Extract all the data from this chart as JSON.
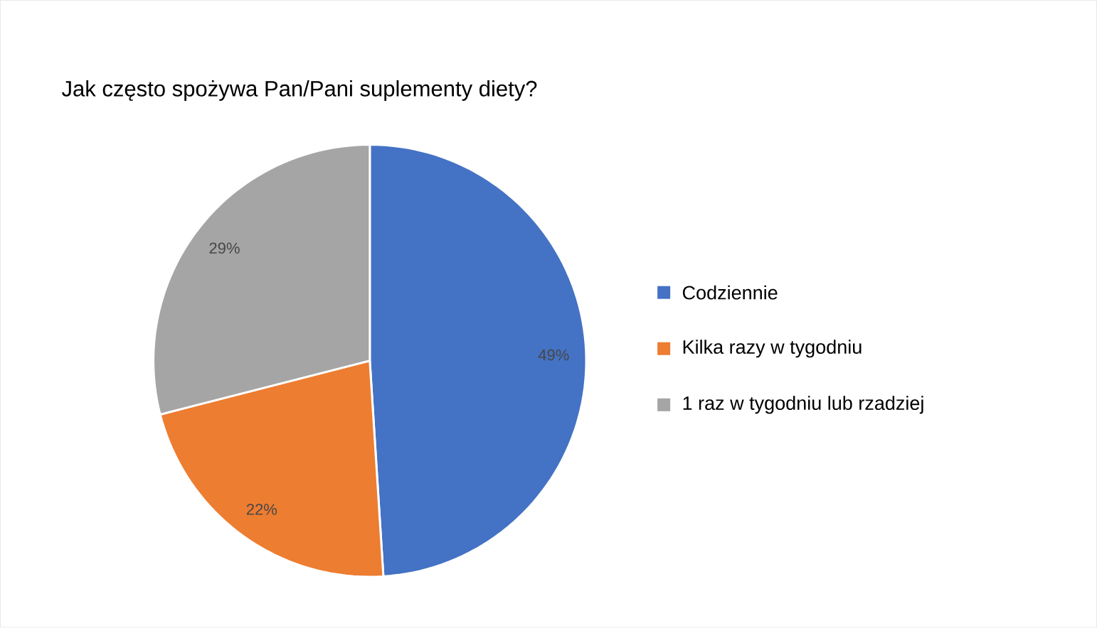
{
  "chart_data": {
    "type": "pie",
    "title": "Jak często spożywa Pan/Pani suplementy diety?",
    "categories": [
      "Codziennie",
      "Kilka razy w tygodniu",
      "1 raz w tygodniu lub rzadziej"
    ],
    "values": [
      49,
      22,
      29
    ],
    "value_labels": [
      "49%",
      "22%",
      "29%"
    ],
    "colors": [
      "#4472c4",
      "#ed7d31",
      "#a5a5a5"
    ],
    "legend": "right"
  }
}
